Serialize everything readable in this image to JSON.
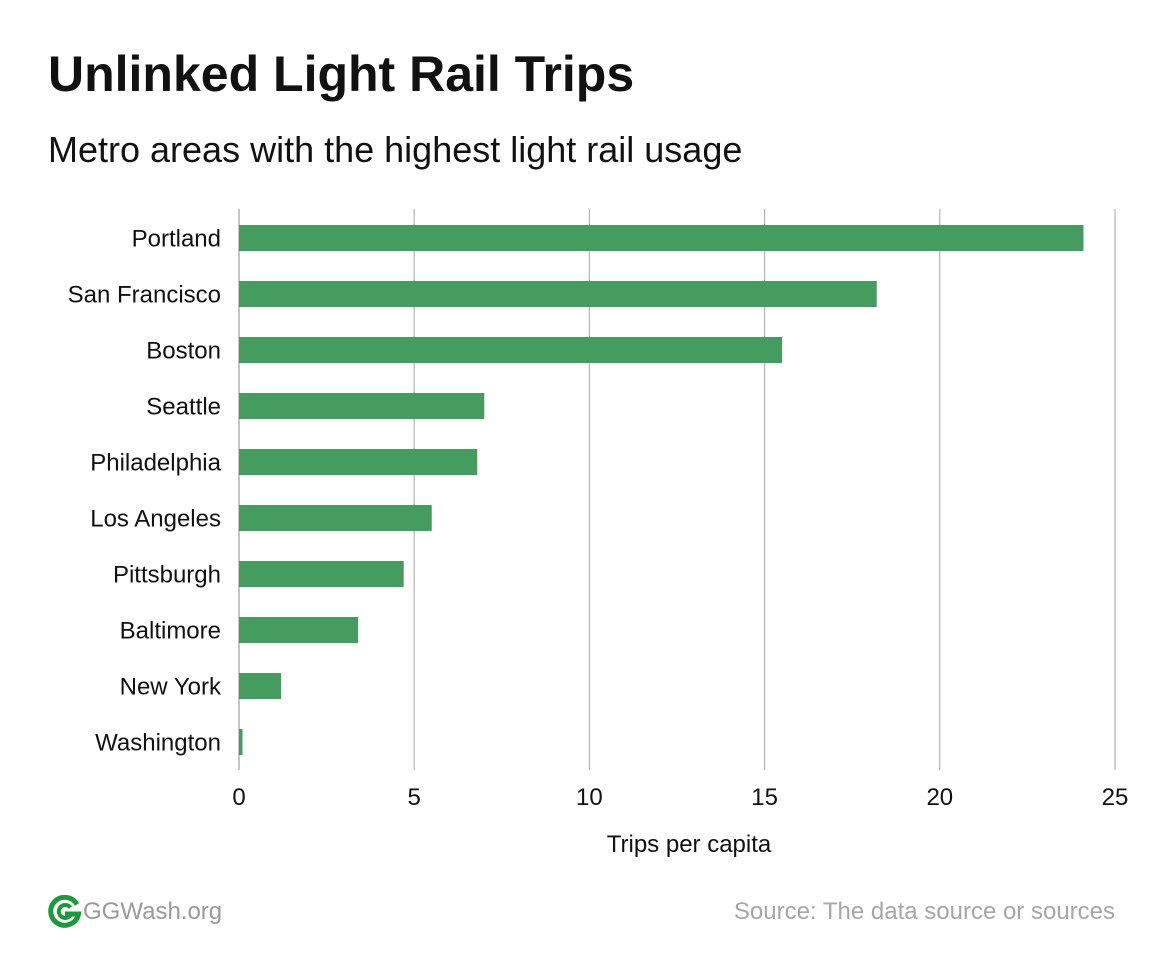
{
  "header": {
    "title": "Unlinked Light Rail Trips",
    "subtitle": "Metro areas with the highest light rail usage"
  },
  "footer": {
    "brand": "GGWash.org",
    "source": "Source: The data source or sources",
    "logo_icon": "ggwash-logo-icon",
    "logo_color": "#1a9b3a"
  },
  "chart_data": {
    "type": "bar",
    "orientation": "horizontal",
    "categories": [
      "Portland",
      "San Francisco",
      "Boston",
      "Seattle",
      "Philadelphia",
      "Los Angeles",
      "Pittsburgh",
      "Baltimore",
      "New York",
      "Washington"
    ],
    "values": [
      24.1,
      18.2,
      15.5,
      7.0,
      6.8,
      5.5,
      4.7,
      3.4,
      1.2,
      0.1
    ],
    "title": "Unlinked Light Rail Trips",
    "subtitle": "Metro areas with the highest light rail usage",
    "xlabel": "Trips per capita",
    "ylabel": "",
    "xlim": [
      0,
      25
    ],
    "xticks": [
      0,
      5,
      10,
      15,
      20,
      25
    ],
    "xtick_labels": [
      "0",
      "5",
      "10",
      "15",
      "20",
      "25"
    ],
    "grid": true,
    "legend": "none",
    "bar_color": "#449c5e",
    "grid_color": "#b3b3b3"
  }
}
